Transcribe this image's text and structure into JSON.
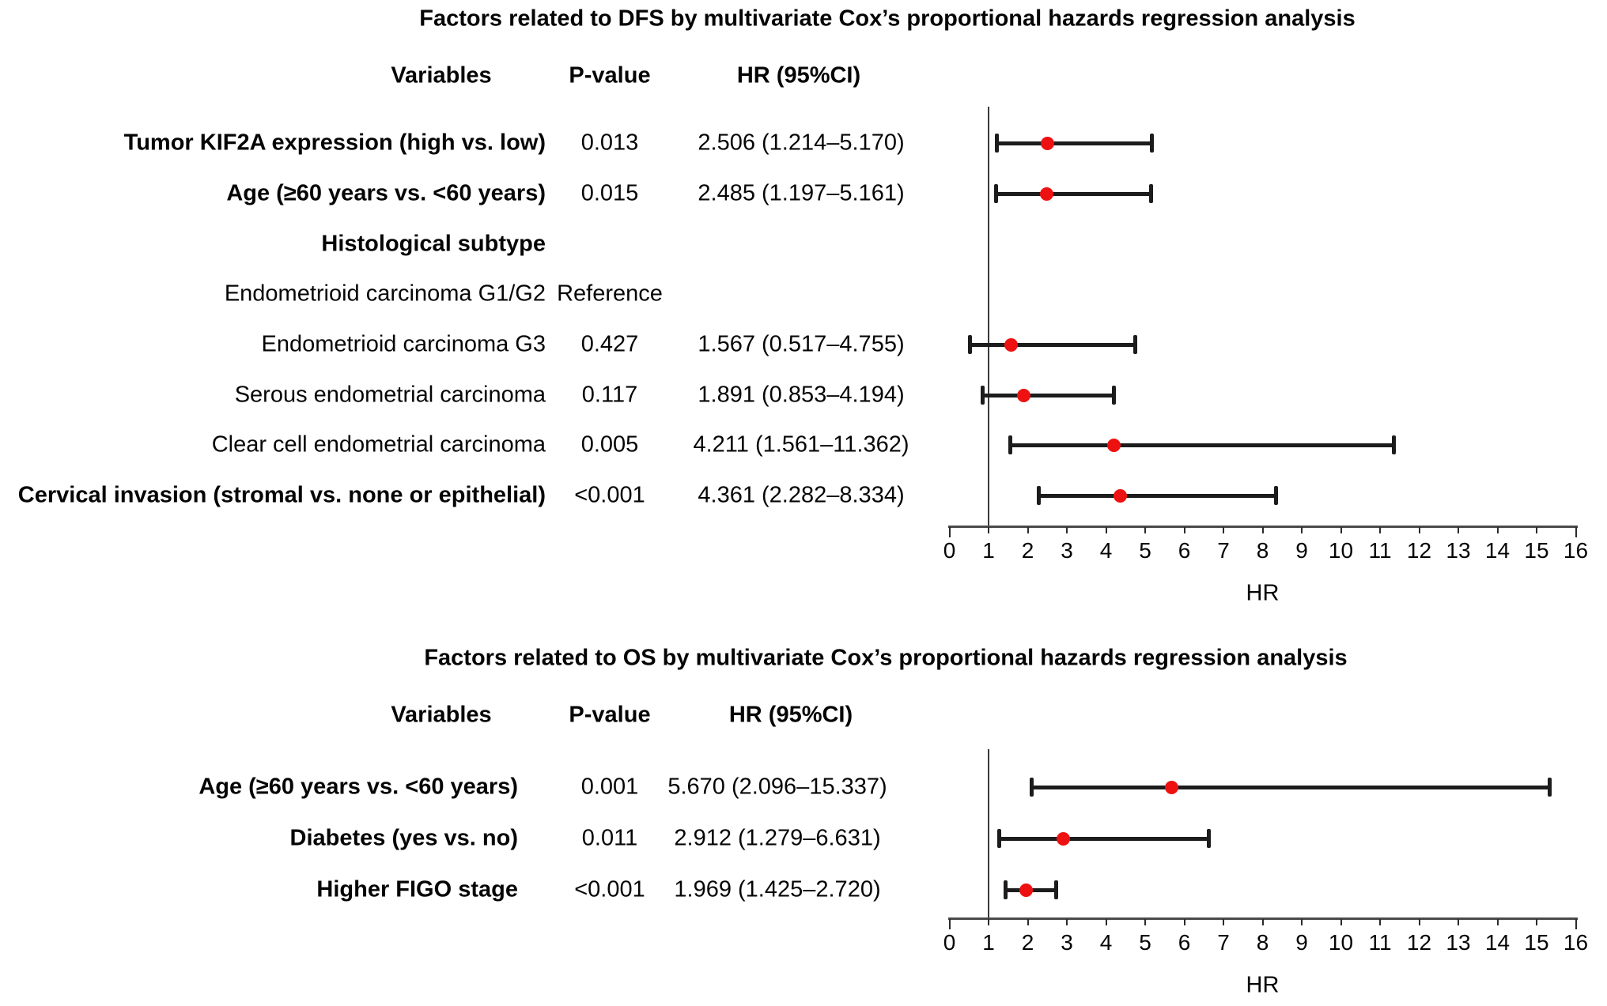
{
  "chart_data": [
    {
      "type": "forest",
      "title": "Factors related to DFS by multivariate Cox’s proportional hazards regression analysis",
      "columns": [
        "Variables",
        "P-value",
        "HR (95%CI)"
      ],
      "xlabel": "HR",
      "xlim": [
        0,
        16
      ],
      "xtick_step": 1,
      "reference_line": 1,
      "grid": false,
      "legend": "none",
      "colors": {
        "point": "#ee1111",
        "error_bar": "#1c1c1c"
      },
      "rows": [
        {
          "variable": "Tumor KIF2A expression (high vs. low)",
          "bold": true,
          "p_value": "0.013",
          "hr_ci": "2.506 (1.214–5.170)",
          "hr": 2.506,
          "ci_low": 1.214,
          "ci_high": 5.17
        },
        {
          "variable": "Age (≥60 years vs. <60 years)",
          "bold": true,
          "p_value": "0.015",
          "hr_ci": "2.485 (1.197–5.161)",
          "hr": 2.485,
          "ci_low": 1.197,
          "ci_high": 5.161
        },
        {
          "variable": "Histological subtype",
          "bold": true,
          "p_value": "",
          "hr_ci": "",
          "hr": null,
          "ci_low": null,
          "ci_high": null
        },
        {
          "variable": "Endometrioid carcinoma G1/G2",
          "bold": false,
          "p_value": "Reference",
          "hr_ci": "",
          "hr": null,
          "ci_low": null,
          "ci_high": null
        },
        {
          "variable": "Endometrioid carcinoma G3",
          "bold": false,
          "p_value": "0.427",
          "hr_ci": "1.567 (0.517–4.755)",
          "hr": 1.567,
          "ci_low": 0.517,
          "ci_high": 4.755
        },
        {
          "variable": "Serous endometrial carcinoma",
          "bold": false,
          "p_value": "0.117",
          "hr_ci": "1.891 (0.853–4.194)",
          "hr": 1.891,
          "ci_low": 0.853,
          "ci_high": 4.194
        },
        {
          "variable": "Clear cell endometrial carcinoma",
          "bold": false,
          "p_value": "0.005",
          "hr_ci": "4.211 (1.561–11.362)",
          "hr": 4.211,
          "ci_low": 1.561,
          "ci_high": 11.362
        },
        {
          "variable": "Cervical invasion (stromal vs. none or epithelial)",
          "bold": true,
          "p_value": "<0.001",
          "hr_ci": "4.361 (2.282–8.334)",
          "hr": 4.361,
          "ci_low": 2.282,
          "ci_high": 8.334
        }
      ]
    },
    {
      "type": "forest",
      "title": "Factors related to OS by multivariate Cox’s proportional hazards regression analysis",
      "columns": [
        "Variables",
        "P-value",
        "HR (95%CI)"
      ],
      "xlabel": "HR",
      "xlim": [
        0,
        16
      ],
      "xtick_step": 1,
      "reference_line": 1,
      "grid": false,
      "legend": "none",
      "colors": {
        "point": "#ee1111",
        "error_bar": "#1c1c1c"
      },
      "rows": [
        {
          "variable": "Age (≥60 years vs. <60 years)",
          "bold": true,
          "p_value": "0.001",
          "hr_ci": "5.670 (2.096–15.337)",
          "hr": 5.67,
          "ci_low": 2.096,
          "ci_high": 15.337
        },
        {
          "variable": "Diabetes (yes vs. no)",
          "bold": true,
          "p_value": "0.011",
          "hr_ci": "2.912 (1.279–6.631)",
          "hr": 2.912,
          "ci_low": 1.279,
          "ci_high": 6.631
        },
        {
          "variable": "Higher FIGO stage",
          "bold": true,
          "p_value": "<0.001",
          "hr_ci": "1.969 (1.425–2.720)",
          "hr": 1.969,
          "ci_low": 1.425,
          "ci_high": 2.72
        }
      ]
    }
  ]
}
